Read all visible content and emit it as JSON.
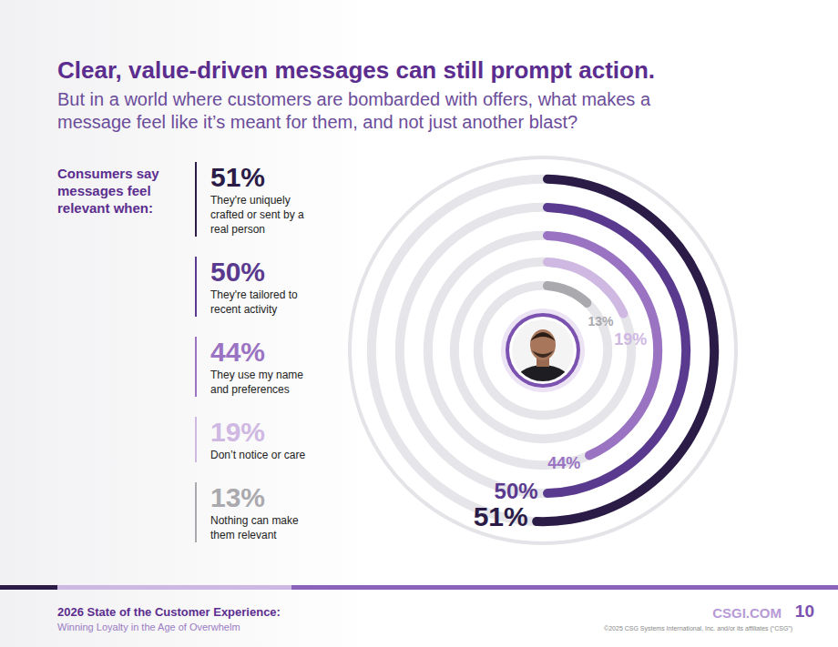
{
  "chart_data": {
    "type": "radial_bar",
    "title": "Clear, value-driven messages can still prompt action.",
    "subtitle": "But in a world where customers are bombarded with offers, what makes a message feel like it’s meant for them, and not just another blast?",
    "heading": "Consumers say messages feel relevant when:",
    "categories": [
      "They're uniquely crafted or sent by a real person",
      "They're tailored to recent activity",
      "They use my name and preferences",
      "Don’t notice or care",
      "Nothing can make them relevant"
    ],
    "values": [
      51,
      50,
      44,
      19,
      13
    ],
    "value_labels": [
      "51%",
      "50%",
      "44%",
      "19%",
      "13%"
    ],
    "colors": [
      "#2a1b47",
      "#5a3a8e",
      "#9a74c2",
      "#cfb8e2",
      "#a9a9ae"
    ],
    "ylim": [
      0,
      100
    ],
    "tick_labels": false,
    "data_labels": true
  },
  "footer": {
    "title": "2026 State of the Customer Experience:",
    "subtitle": "Winning Loyalty in the Age of Overwhelm",
    "site": "CSGI.COM",
    "page": "10",
    "copyright": "©2025 CSG Systems International, Inc. and/or its affiliates (“CSG”)"
  }
}
